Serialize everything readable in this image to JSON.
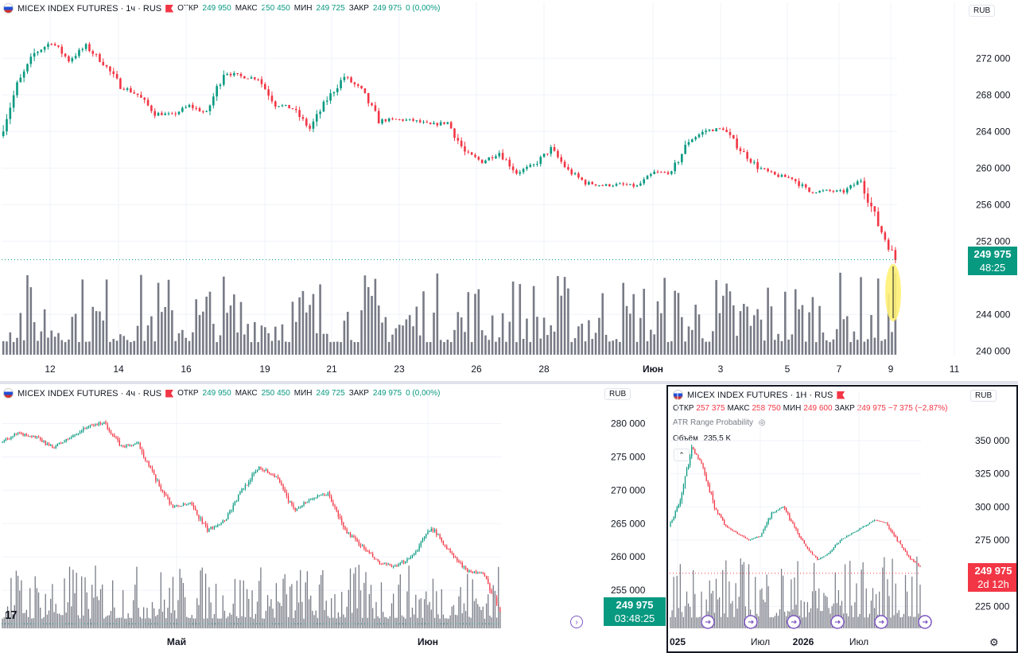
{
  "panes": {
    "top": {
      "symbol": "MICEX INDEX FUTURES · 1ч · RUS",
      "open_label": "ОТКР",
      "open": "249 950",
      "high_label": "МАКС",
      "high": "250 450",
      "low_label": "МИН",
      "low": "249 725",
      "close_label": "ЗАКР",
      "close": "249 975",
      "change": "0 (0,00%)",
      "currency": "RUB",
      "price_label": "249 975",
      "countdown": "48:25"
    },
    "bottom_left": {
      "symbol": "MICEX INDEX FUTURES · 4ч · RUS",
      "open_label": "ОТКР",
      "open": "249 950",
      "high_label": "МАКС",
      "high": "250 450",
      "low_label": "МИН",
      "low": "249 725",
      "close_label": "ЗАКР",
      "close": "249 975",
      "change": "0 (0,00%)",
      "currency": "RUB",
      "price_label": "249 975",
      "countdown": "03:48:25"
    },
    "bottom_right": {
      "symbol": "MICEX INDEX FUTURES · 1Н · RUS",
      "open_label": "ОТКР",
      "open": "257 375",
      "high_label": "МАКС",
      "high": "258 750",
      "low_label": "МИН",
      "low": "249 600",
      "close_label": "ЗАКР",
      "close": "249 975",
      "change": "−7 375 (−2,87%)",
      "indicator": "ATR Range Probability",
      "volume_label": "Объём",
      "volume_value": "235,5 K",
      "currency": "RUB",
      "price_label": "249 975",
      "countdown": "2d 12h"
    }
  },
  "colors": {
    "up": "#089981",
    "down": "#f23645",
    "volume": "#787b86",
    "price_green": "#089981",
    "price_red": "#f23645",
    "highlight": "#fff176"
  },
  "chart_data": [
    {
      "type": "candlestick",
      "timeframe": "1ч",
      "x_ticks": [
        "12",
        "14",
        "16",
        "19",
        "21",
        "23",
        "26",
        "28",
        "Июн",
        "3",
        "5",
        "7",
        "9",
        "11"
      ],
      "y_ticks": [
        "272 000",
        "268 000",
        "264 000",
        "260 000",
        "256 000",
        "252 000",
        "244 000",
        "240 000"
      ],
      "ylim": [
        239500,
        275500
      ],
      "close_path": [
        263500,
        269000,
        272500,
        273800,
        271800,
        273300,
        271500,
        269000,
        268000,
        266000,
        265800,
        266800,
        266000,
        270500,
        270000,
        269800,
        267000,
        266500,
        264300,
        267500,
        270000,
        268500,
        265200,
        265300,
        265200,
        264700,
        265000,
        261700,
        260700,
        261700,
        259500,
        260300,
        262100,
        259700,
        258400,
        258100,
        258200,
        258000,
        259500,
        259500,
        263000,
        264100,
        264300,
        262000,
        260100,
        259200,
        258900,
        257400,
        257500,
        257400,
        258700,
        253800,
        250000
      ],
      "last_price": 249975
    },
    {
      "type": "candlestick",
      "timeframe": "4ч",
      "x_ticks": [
        "Май",
        "Июн"
      ],
      "y_ticks": [
        "280 000",
        "275 000",
        "270 000",
        "265 000",
        "260 000",
        "255 000"
      ],
      "ylim": [
        250000,
        281500
      ],
      "close_path": [
        277300,
        278500,
        278000,
        276400,
        277800,
        279500,
        280200,
        276500,
        277000,
        271500,
        267500,
        268000,
        264000,
        265500,
        270000,
        273500,
        272000,
        267000,
        268700,
        269500,
        264000,
        261500,
        259000,
        258500,
        260500,
        264500,
        261000,
        258000,
        257500,
        252000
      ],
      "last_price": 249975
    },
    {
      "type": "candlestick",
      "timeframe": "1Н",
      "x_ticks": [
        "025",
        "Июл",
        "2026",
        "Июл"
      ],
      "y_ticks": [
        "350 000",
        "325 000",
        "300 000",
        "275 000",
        "225 000"
      ],
      "ylim": [
        218000,
        368000
      ],
      "close_path": [
        285000,
        305000,
        345000,
        330000,
        300000,
        285000,
        280000,
        275000,
        278000,
        295000,
        300000,
        285000,
        270000,
        260000,
        265000,
        275000,
        280000,
        285000,
        290000,
        288000,
        275000,
        262000,
        255000
      ],
      "last_price": 249975
    }
  ]
}
